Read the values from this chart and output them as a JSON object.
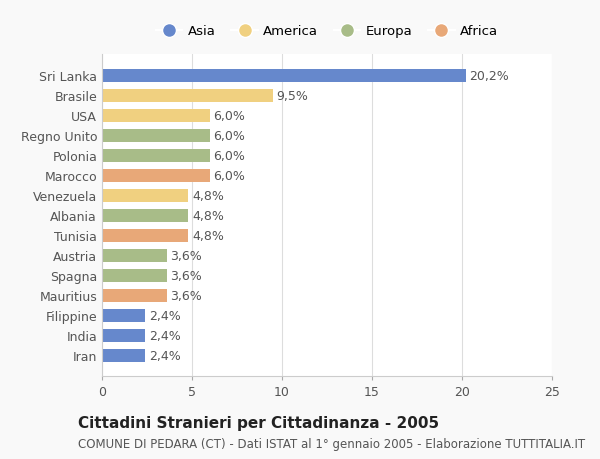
{
  "countries": [
    "Sri Lanka",
    "Brasile",
    "USA",
    "Regno Unito",
    "Polonia",
    "Marocco",
    "Venezuela",
    "Albania",
    "Tunisia",
    "Austria",
    "Spagna",
    "Mauritius",
    "Filippine",
    "India",
    "Iran"
  ],
  "values": [
    20.2,
    9.5,
    6.0,
    6.0,
    6.0,
    6.0,
    4.8,
    4.8,
    4.8,
    3.6,
    3.6,
    3.6,
    2.4,
    2.4,
    2.4
  ],
  "labels": [
    "20,2%",
    "9,5%",
    "6,0%",
    "6,0%",
    "6,0%",
    "6,0%",
    "4,8%",
    "4,8%",
    "4,8%",
    "3,6%",
    "3,6%",
    "3,6%",
    "2,4%",
    "2,4%",
    "2,4%"
  ],
  "continents": [
    "Asia",
    "America",
    "America",
    "Europa",
    "Europa",
    "Africa",
    "America",
    "Europa",
    "Africa",
    "Europa",
    "Europa",
    "Africa",
    "Asia",
    "Asia",
    "Asia"
  ],
  "colors": {
    "Asia": "#6688cc",
    "America": "#f0d080",
    "Europa": "#a8bc88",
    "Africa": "#e8a878"
  },
  "legend_order": [
    "Asia",
    "America",
    "Europa",
    "Africa"
  ],
  "title": "Cittadini Stranieri per Cittadinanza - 2005",
  "subtitle": "COMUNE DI PEDARA (CT) - Dati ISTAT al 1° gennaio 2005 - Elaborazione TUTTITALIA.IT",
  "xlim": [
    0,
    25
  ],
  "xticks": [
    0,
    5,
    10,
    15,
    20,
    25
  ],
  "background_color": "#f9f9f9",
  "bar_background": "#ffffff",
  "grid_color": "#dddddd",
  "title_fontsize": 11,
  "subtitle_fontsize": 8.5,
  "tick_fontsize": 9,
  "label_fontsize": 9
}
